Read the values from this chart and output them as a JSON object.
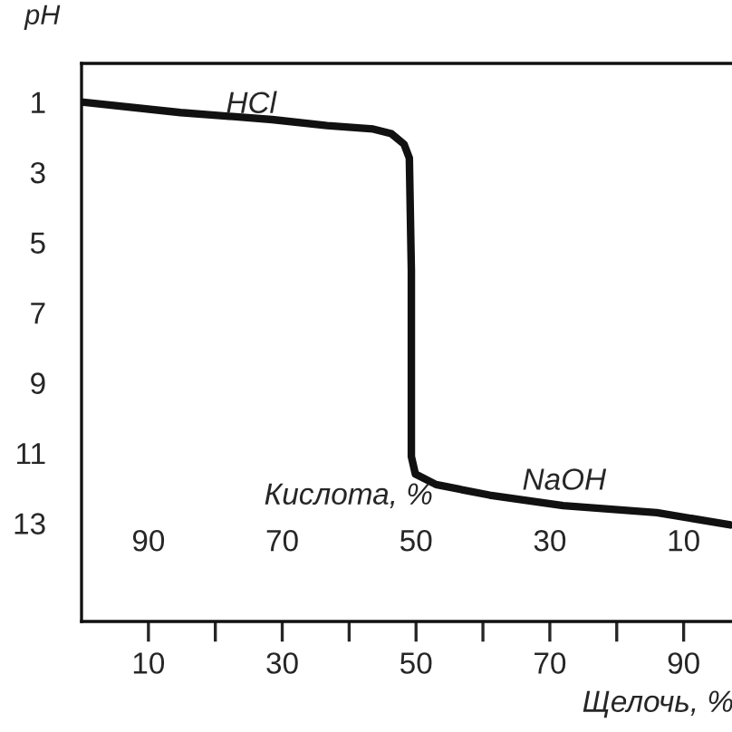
{
  "chart_data": {
    "type": "line",
    "ylabel": "pH",
    "xlabel": "Щелочь, %",
    "x2label": "Кислота, %",
    "x": [
      0,
      14.8,
      28.5,
      36.7,
      43.6,
      46.3,
      48.2,
      49,
      49.3,
      49.3,
      49.9,
      53,
      61,
      72,
      86,
      97
    ],
    "series": [
      {
        "color": "#111111",
        "values": [
          1.0,
          1.3,
          1.5,
          1.67,
          1.77,
          1.9,
          2.2,
          2.6,
          5.8,
          11.1,
          11.6,
          11.9,
          12.2,
          12.5,
          12.7,
          13.05
        ]
      }
    ],
    "xlim": [
      0,
      97.5
    ],
    "xticks": [
      {
        "value": 10,
        "label": "10"
      },
      {
        "value": 20,
        "label": null
      },
      {
        "value": 30,
        "label": "30"
      },
      {
        "value": 40,
        "label": null
      },
      {
        "value": 50,
        "label": "50"
      },
      {
        "value": 60,
        "label": null
      },
      {
        "value": 70,
        "label": "70"
      },
      {
        "value": 80,
        "label": null
      },
      {
        "value": 90,
        "label": "90"
      }
    ],
    "x2lim": [
      100,
      2.5
    ],
    "x2ticks": [
      90,
      70,
      50,
      30,
      10
    ],
    "ylim": [
      15.8,
      -0.1
    ],
    "yticks": [
      1,
      3,
      5,
      7,
      9,
      11,
      13
    ],
    "annotations": [
      "HCl",
      "NaOH"
    ],
    "grid": false,
    "marker": "none",
    "line_style": "solid"
  }
}
